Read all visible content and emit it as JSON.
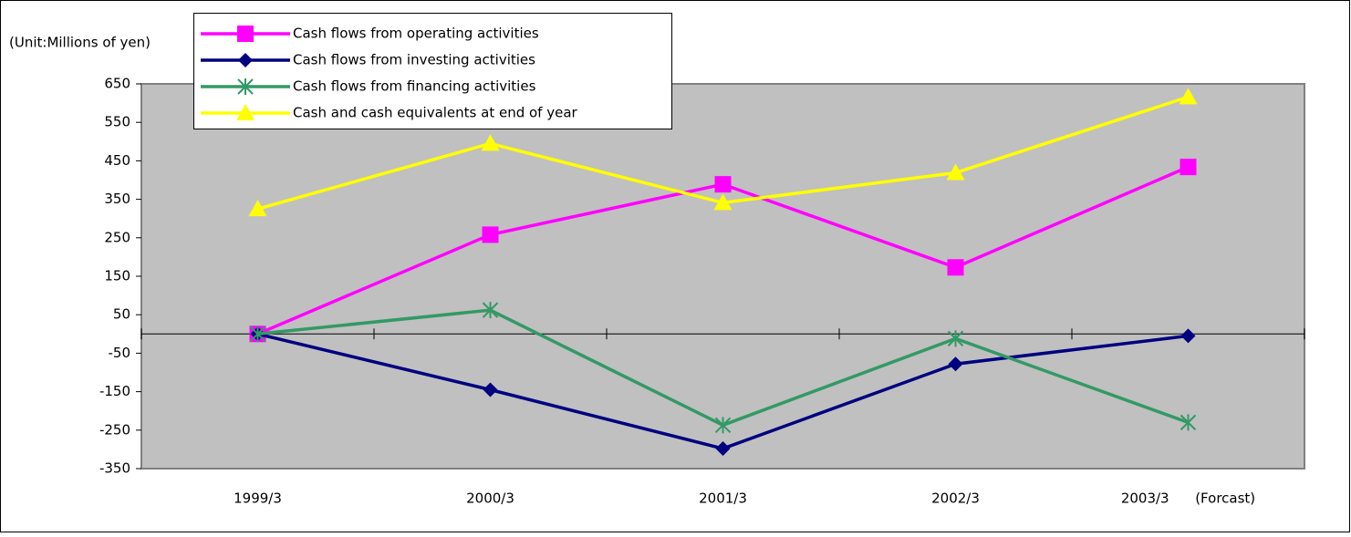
{
  "chart_data": {
    "type": "line",
    "unit_label": "(Unit:Millions of yen)",
    "categories": [
      "1999/3",
      "2000/3",
      "2001/3",
      "2002/3",
      "2003/3      (Forcast)"
    ],
    "ylim": [
      -350,
      650
    ],
    "yticks": [
      650,
      550,
      450,
      350,
      250,
      150,
      50,
      -50,
      -150,
      -250,
      -350
    ],
    "grid": false,
    "legend": "top-left",
    "series": [
      {
        "name": "Cash flows from operating activities",
        "color": "#ff00ff",
        "marker": "square",
        "values": [
          0,
          258,
          389,
          173,
          434
        ]
      },
      {
        "name": "Cash flows from investing activities",
        "color": "#000080",
        "marker": "diamond",
        "values": [
          0,
          -145,
          -298,
          -78,
          -5
        ]
      },
      {
        "name": "Cash flows from financing activities",
        "color": "#339966",
        "marker": "asterisk",
        "values": [
          0,
          62,
          -237,
          -12,
          -230
        ]
      },
      {
        "name": "Cash and cash equivalents at end of year",
        "color": "#ffff00",
        "marker": "triangle",
        "values": [
          325,
          495,
          341,
          419,
          616
        ]
      }
    ]
  }
}
